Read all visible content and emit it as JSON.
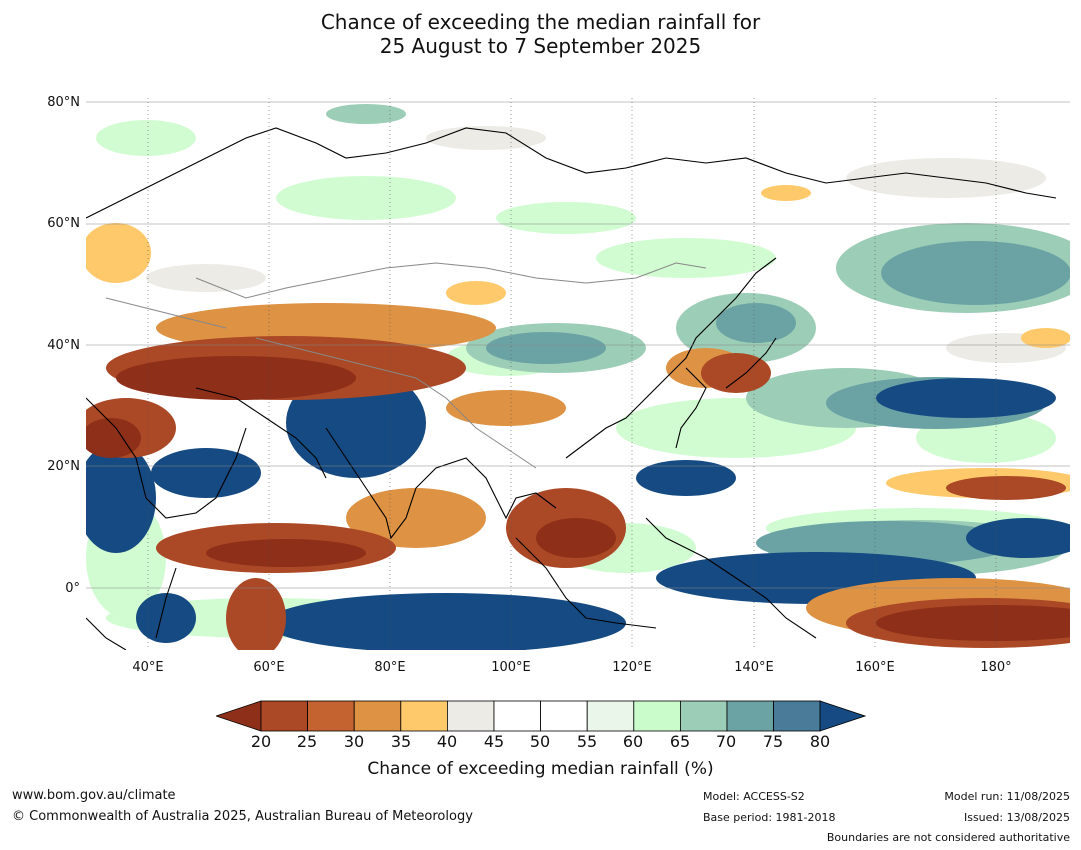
{
  "title": {
    "line1": "Chance of exceeding the median rainfall for",
    "line2": "25 August to 7 September 2025"
  },
  "map": {
    "lat_labels": [
      "80°N",
      "60°N",
      "40°N",
      "20°N",
      "0°"
    ],
    "lon_labels": [
      "40°E",
      "60°E",
      "80°E",
      "100°E",
      "120°E",
      "140°E",
      "160°E",
      "180°"
    ],
    "extent": {
      "lon": [
        30,
        192
      ],
      "lat": [
        -10,
        81
      ]
    }
  },
  "colorbar": {
    "ticks": [
      "20",
      "25",
      "30",
      "35",
      "40",
      "45",
      "50",
      "55",
      "60",
      "65",
      "70",
      "75",
      "80"
    ],
    "colors": [
      "#ab4825",
      "#c4632f",
      "#dd9244",
      "#fdc96a",
      "#ecebe6",
      "#ffffff",
      "#ffffff",
      "#e9f6e9",
      "#c9fcca",
      "#9ccdb7",
      "#6ba3a5",
      "#4a7b98"
    ],
    "low_color": "#8e2f19",
    "high_color": "#154a82",
    "label": "Chance of exceeding median rainfall (%)"
  },
  "footer": {
    "url": "www.bom.gov.au/climate",
    "copyright": "© Commonwealth of Australia 2025, Australian Bureau of Meteorology",
    "model": "Model: ACCESS-S2",
    "base_period": "Base period: 1981-2018",
    "model_run": "Model run: 11/08/2025",
    "issued": "Issued: 13/08/2025",
    "disclaimer": "Boundaries are not considered authoritative"
  }
}
